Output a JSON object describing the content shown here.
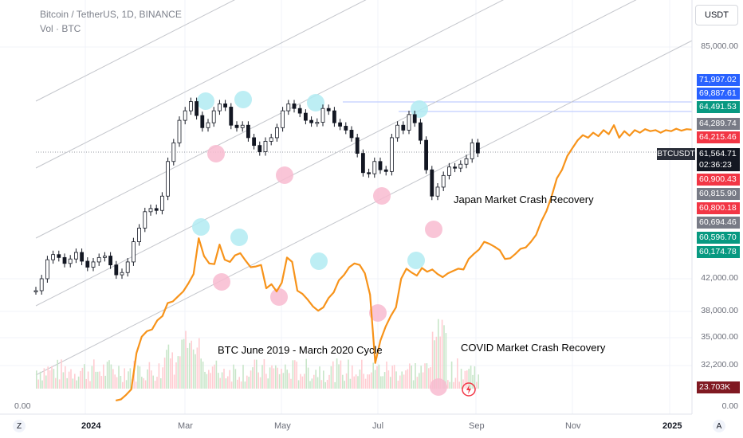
{
  "header": {
    "title": "Bitcoin / TetherUS, 1D, BINANCE",
    "volume": "Vol · BTC"
  },
  "currency_button": "USDT",
  "chart_data": {
    "type": "line",
    "title": "Bitcoin / TetherUS, 1D, BINANCE",
    "x_ticks": [
      "2024",
      "Mar",
      "May",
      "Jul",
      "Sep",
      "Nov",
      "2025"
    ],
    "y_ticks": [
      "85,000.00",
      "42,000.00",
      "38,000.00",
      "35,000.00",
      "32,200.00",
      "0.00"
    ],
    "scale": "log",
    "series": [
      {
        "name": "",
        "type": "candlestick",
        "color": "#131722",
        "x": [
          0,
          3,
          6,
          9,
          12,
          15,
          18,
          21,
          24,
          27,
          30,
          33,
          36,
          39,
          42,
          45,
          48,
          51,
          54,
          57,
          60,
          63,
          66,
          69,
          72,
          75,
          78,
          81,
          84,
          87,
          90,
          93,
          96,
          99,
          102,
          105,
          108,
          111,
          114,
          117,
          120,
          123,
          126,
          129,
          132,
          135,
          138,
          141,
          144,
          147,
          150,
          153,
          156,
          159,
          162,
          165,
          168,
          171,
          174,
          177,
          180,
          183,
          186,
          189,
          192,
          195,
          198,
          201,
          204,
          207,
          210,
          213,
          216,
          219,
          222,
          225,
          228,
          231
        ],
        "values": [
          40500,
          42000,
          44500,
          45200,
          44800,
          44000,
          44600,
          45500,
          44300,
          43500,
          44200,
          44800,
          45000,
          43800,
          42500,
          42800,
          44200,
          47000,
          49000,
          51500,
          52000,
          51700,
          54000,
          60000,
          63500,
          68000,
          70000,
          72000,
          69000,
          66500,
          67500,
          70000,
          71500,
          70800,
          67000,
          66500,
          67000,
          64500,
          63000,
          61800,
          63800,
          64500,
          66500,
          70000,
          71500,
          70500,
          69500,
          68000,
          67500,
          67600,
          70500,
          70000,
          67500,
          66800,
          66000,
          64500,
          61500,
          58000,
          57800,
          60000,
          58500,
          58200,
          64500,
          67000,
          66000,
          69200,
          67500,
          64000,
          58500,
          54000,
          55500,
          57500,
          59000,
          58800,
          59500,
          60500,
          63500,
          61564.71
        ]
      },
      {
        "name": "",
        "color": "#f7931a",
        "x": [
          7,
          10,
          13,
          16,
          19,
          22,
          25,
          28,
          31,
          34,
          37,
          40,
          43,
          46,
          49,
          52,
          55,
          58,
          61,
          64,
          67,
          70,
          73,
          76,
          79,
          82,
          85,
          88,
          91,
          94,
          97,
          100,
          103,
          106,
          109,
          112,
          115,
          118,
          121,
          124,
          127,
          130,
          133,
          136,
          139,
          142,
          145,
          148,
          151,
          154,
          157,
          160,
          163,
          166,
          169,
          172,
          175,
          178,
          181,
          184,
          187,
          190,
          193,
          196,
          199,
          202,
          205,
          208,
          211,
          214,
          217,
          220,
          223,
          226,
          229,
          232,
          235,
          238,
          241,
          244,
          247,
          250,
          253,
          256,
          259,
          262,
          265,
          268,
          271,
          274,
          277,
          280,
          283,
          286,
          289,
          292,
          295,
          298,
          301,
          304,
          307,
          310,
          313,
          316,
          319,
          322,
          325,
          328,
          331,
          334,
          337,
          340
        ],
        "values": [
          29000,
          29100,
          29500,
          30000,
          33500,
          35200,
          35800,
          36000,
          37000,
          37500,
          39000,
          39200,
          39800,
          40400,
          41400,
          42600,
          47500,
          45000,
          44000,
          43900,
          46600,
          44500,
          44200,
          45100,
          45400,
          44400,
          43500,
          43600,
          43800,
          40800,
          41300,
          40400,
          41500,
          44800,
          44200,
          40500,
          40100,
          39400,
          38600,
          38100,
          38500,
          39600,
          40300,
          41800,
          42500,
          43500,
          44000,
          43800,
          42700,
          40000,
          32500,
          34800,
          36300,
          37500,
          38500,
          42000,
          43300,
          42800,
          42400,
          43400,
          42900,
          43200,
          42600,
          42200,
          42700,
          43000,
          43300,
          43200,
          44600,
          45300,
          45900,
          47000,
          46700,
          46300,
          45800,
          44600,
          44700,
          45300,
          46000,
          46200,
          47000,
          48000,
          50000,
          51600,
          54000,
          57000,
          58500,
          61000,
          62500,
          64000,
          65000,
          64500,
          65500,
          64800,
          66000,
          65200,
          67000,
          64500,
          65800,
          64900,
          66000,
          65500,
          66200,
          65800,
          66000,
          65500,
          66000,
          65800,
          66300,
          65900,
          66200,
          66100
        ]
      }
    ],
    "volume_ticks": [
      "23.703K"
    ],
    "price_tags": [
      {
        "value": "71,997.02",
        "color": "#2962ff"
      },
      {
        "value": "69,887.61",
        "color": "#2962ff"
      },
      {
        "value": "64,491.53",
        "color": "#089981"
      },
      {
        "value": "64,289.74",
        "color": "#787b86"
      },
      {
        "value": "64,215.46",
        "color": "#f23645"
      },
      {
        "value": "61,564.71",
        "color": "#131722"
      },
      {
        "value": "02:36:23",
        "color": "#131722"
      },
      {
        "value": "60,900.43",
        "color": "#f23645"
      },
      {
        "value": "60,815.90",
        "color": "#787b86"
      },
      {
        "value": "60,800.18",
        "color": "#f23645"
      },
      {
        "value": "60,694.46",
        "color": "#787b86"
      },
      {
        "value": "60,596.70",
        "color": "#089981"
      },
      {
        "value": "60,174.78",
        "color": "#089981"
      },
      {
        "value": "23.703K",
        "color": "#801922"
      }
    ],
    "symbol_tag": "BTCUSDT",
    "annotations": [
      {
        "text": "Japan Market Crash Recovery",
        "color": "#4a4e59"
      },
      {
        "text": "BTC June 2019 - March 2020 Cycle",
        "color": "#f7931a"
      },
      {
        "text": "COVID Market Crash Recovery",
        "color": "#f7931a"
      }
    ],
    "highlight_colors": {
      "peak": "#b2ebf2",
      "trough": "#f8bbd0"
    },
    "grid": true
  },
  "corner": {
    "left": "Z",
    "right": "A"
  }
}
